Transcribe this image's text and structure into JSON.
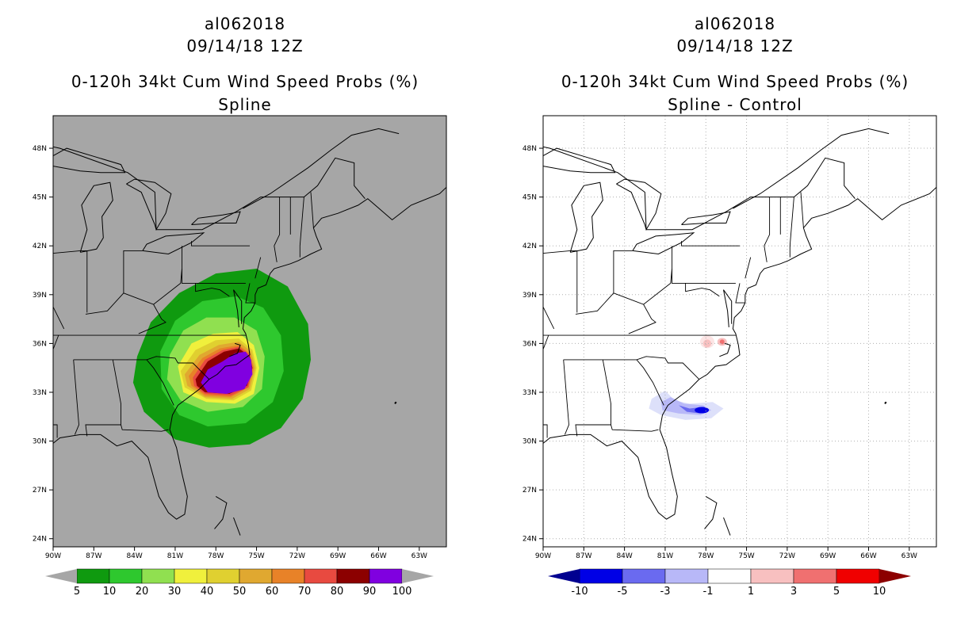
{
  "panels": [
    {
      "id": "left",
      "titles": [
        "al062018",
        "09/14/18 12Z",
        "0-120h 34kt Cum Wind Speed Probs (%)",
        "Spline"
      ],
      "background": "#a6a6a6",
      "colorbar": {
        "labels": [
          "5",
          "10",
          "20",
          "30",
          "40",
          "50",
          "60",
          "70",
          "80",
          "90",
          "100"
        ],
        "colors": [
          "#0f9a0f",
          "#2ec82e",
          "#90e050",
          "#f0f03c",
          "#e0d030",
          "#e0a830",
          "#e88228",
          "#e84a40",
          "#8c0000",
          "#8000e0"
        ],
        "end_colors": [
          "#a6a6a6",
          "#a6a6a6"
        ]
      }
    },
    {
      "id": "right",
      "titles": [
        "al062018",
        "09/14/18 12Z",
        "0-120h 34kt Cum Wind Speed Probs (%)",
        "Spline - Control"
      ],
      "background": "#ffffff",
      "colorbar": {
        "labels": [
          "-10",
          "-5",
          "-3",
          "-1",
          "1",
          "3",
          "5",
          "10"
        ],
        "colors": [
          "#0000e6",
          "#6a6af0",
          "#b8b8f8",
          "#ffffff",
          "#f8c0c0",
          "#f07070",
          "#f00000"
        ],
        "end_colors": [
          "#000090",
          "#8c0000"
        ]
      }
    }
  ],
  "map": {
    "lat_labels": [
      "48N",
      "45N",
      "42N",
      "39N",
      "36N",
      "33N",
      "30N",
      "27N",
      "24N"
    ],
    "lat_values": [
      48,
      45,
      42,
      39,
      36,
      33,
      30,
      27,
      24
    ],
    "lon_labels": [
      "90W",
      "87W",
      "84W",
      "81W",
      "78W",
      "75W",
      "72W",
      "69W",
      "66W",
      "63W"
    ],
    "lon_values": [
      -90,
      -87,
      -84,
      -81,
      -78,
      -75,
      -72,
      -69,
      -66,
      -63
    ],
    "lon_range": [
      -90,
      -61
    ],
    "lat_range": [
      23.5,
      50
    ]
  }
}
